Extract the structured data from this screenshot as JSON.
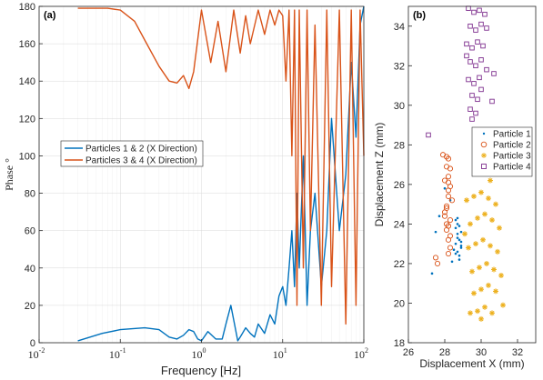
{
  "chart_data": [
    {
      "type": "line",
      "panel_label": "(a)",
      "xlabel": "Frequency [Hz]",
      "ylabel": "Phase °",
      "xscale": "log",
      "xlim": [
        0.01,
        100
      ],
      "ylim": [
        0,
        180
      ],
      "xticks": [
        0.01,
        0.1,
        1,
        10,
        100
      ],
      "xtick_labels": [
        {
          "base": "10",
          "exp": "-2"
        },
        {
          "base": "10",
          "exp": "-1"
        },
        {
          "base": "10",
          "exp": "0"
        },
        {
          "base": "10",
          "exp": "1"
        },
        {
          "base": "10",
          "exp": "2"
        }
      ],
      "yticks": [
        0,
        20,
        40,
        60,
        80,
        100,
        120,
        140,
        160,
        180
      ],
      "grid": true,
      "legend_position": "center-left",
      "series": [
        {
          "name": "Particles 1 & 2 (X Direction)",
          "color": "#0072BD",
          "x": [
            0.03,
            0.06,
            0.1,
            0.2,
            0.3,
            0.4,
            0.5,
            0.6,
            0.7,
            0.8,
            0.9,
            1.0,
            1.2,
            1.5,
            1.8,
            2.0,
            2.3,
            2.5,
            2.8,
            3.0,
            3.5,
            4.0,
            4.5,
            5.0,
            6.0,
            7.0,
            8.0,
            9.0,
            10,
            11,
            12,
            13,
            14,
            15,
            16,
            18,
            20,
            22,
            25,
            30,
            35,
            40,
            50,
            60,
            70,
            80,
            90,
            100
          ],
          "y": [
            1,
            5,
            7,
            8,
            7,
            3,
            2,
            4,
            7,
            6,
            2,
            1,
            6,
            2,
            2,
            10,
            20,
            12,
            1,
            3,
            8,
            5,
            3,
            10,
            5,
            15,
            10,
            25,
            30,
            20,
            40,
            60,
            30,
            80,
            40,
            100,
            20,
            60,
            80,
            30,
            60,
            120,
            60,
            90,
            150,
            110,
            170,
            180
          ]
        },
        {
          "name": "Particles 3 & 4 (X Direction)",
          "color": "#D95319",
          "x": [
            0.03,
            0.05,
            0.07,
            0.1,
            0.15,
            0.2,
            0.3,
            0.4,
            0.5,
            0.6,
            0.7,
            0.8,
            1.0,
            1.3,
            1.6,
            2.0,
            2.5,
            3.0,
            3.5,
            4.0,
            5.0,
            6.0,
            7.0,
            8.0,
            9.0,
            10,
            11,
            12,
            13,
            14,
            15,
            16,
            18,
            20,
            22,
            25,
            30,
            35,
            40,
            50,
            60,
            70,
            80,
            90,
            100
          ],
          "y": [
            179,
            179,
            179,
            178,
            172,
            162,
            148,
            140,
            139,
            143,
            136,
            145,
            178,
            150,
            172,
            145,
            178,
            155,
            175,
            160,
            178,
            165,
            178,
            170,
            178,
            175,
            140,
            178,
            100,
            178,
            20,
            178,
            40,
            178,
            60,
            170,
            20,
            178,
            30,
            178,
            10,
            178,
            20,
            178,
            100
          ]
        }
      ]
    },
    {
      "type": "scatter",
      "panel_label": "(b)",
      "xlabel": "Displacement X (mm)",
      "ylabel": "Displacement Z (mm)",
      "xlim": [
        26,
        33
      ],
      "ylim": [
        18,
        35
      ],
      "xticks": [
        26,
        28,
        30,
        32
      ],
      "yticks": [
        18,
        20,
        22,
        24,
        26,
        28,
        30,
        32,
        34
      ],
      "grid": false,
      "legend_position": "right",
      "series": [
        {
          "name": "Particle 1",
          "color": "#0072BD",
          "marker": "dot",
          "x": [
            28.6,
            28.7,
            28.8,
            28.9,
            28.7,
            28.6,
            28.5,
            28.8,
            28.9,
            28.7,
            28.6,
            28.8,
            28.9,
            28.7,
            28.8,
            28.6,
            28.7,
            28.9,
            27.5,
            27.7,
            28.4,
            27.3,
            28.0,
            28.3
          ],
          "y": [
            23.8,
            23.5,
            23.2,
            22.9,
            22.6,
            23.0,
            22.7,
            22.4,
            23.6,
            24.0,
            24.2,
            22.2,
            22.8,
            23.3,
            23.9,
            22.5,
            24.3,
            23.1,
            23.6,
            24.4,
            22.1,
            21.5,
            25.8,
            25.2
          ]
        },
        {
          "name": "Particle 2",
          "color": "#D95319",
          "marker": "circle",
          "x": [
            28.1,
            28.2,
            28.3,
            28.2,
            28.1,
            28.0,
            28.2,
            28.3,
            28.1,
            28.2,
            28.3,
            28.1,
            28.0,
            28.2,
            28.3,
            28.4,
            28.1,
            28.2,
            28.3,
            28.2,
            27.9,
            28.0,
            28.1,
            27.6,
            27.5,
            28.2
          ],
          "y": [
            26.9,
            26.4,
            25.9,
            25.4,
            24.9,
            24.4,
            23.9,
            23.4,
            24.8,
            25.7,
            24.2,
            23.7,
            24.6,
            26.1,
            26.8,
            25.2,
            24.0,
            23.2,
            22.8,
            27.3,
            27.5,
            26.2,
            27.4,
            22.0,
            22.3,
            22.5
          ]
        },
        {
          "name": "Particle 3",
          "color": "#EDB120",
          "marker": "asterisk",
          "x": [
            29.2,
            29.6,
            30.0,
            30.4,
            30.8,
            29.4,
            29.8,
            30.2,
            30.6,
            31.0,
            29.3,
            29.7,
            30.1,
            30.5,
            30.9,
            29.5,
            29.9,
            30.3,
            30.7,
            31.1,
            29.6,
            30.0,
            30.4,
            30.8,
            29.4,
            29.8,
            30.2,
            30.6,
            31.2,
            29.1,
            30.0,
            30.5
          ],
          "y": [
            25.2,
            25.4,
            25.6,
            25.3,
            25.0,
            24.0,
            24.3,
            24.5,
            24.2,
            23.8,
            22.8,
            23.0,
            23.2,
            22.9,
            22.6,
            21.6,
            21.8,
            22.0,
            21.7,
            21.4,
            20.5,
            20.7,
            20.9,
            20.6,
            19.5,
            19.6,
            19.8,
            19.5,
            19.9,
            23.5,
            19.2,
            26.2
          ]
        },
        {
          "name": "Particle 4",
          "color": "#7E2F8E",
          "marker": "square",
          "x": [
            29.3,
            29.6,
            29.9,
            30.2,
            29.4,
            29.7,
            30.0,
            30.3,
            29.2,
            29.5,
            29.8,
            30.1,
            29.4,
            29.7,
            30.0,
            29.3,
            29.6,
            29.9,
            29.5,
            29.8,
            29.4,
            29.7,
            29.5,
            30.0,
            30.3,
            29.2,
            30.6,
            30.7,
            27.1
          ],
          "y": [
            34.9,
            34.7,
            34.8,
            34.6,
            34.0,
            33.8,
            34.1,
            33.9,
            33.1,
            32.9,
            33.2,
            33.0,
            32.2,
            32.0,
            32.3,
            31.3,
            31.1,
            31.4,
            30.5,
            30.3,
            29.8,
            29.6,
            29.3,
            30.8,
            31.8,
            32.5,
            30.2,
            31.6,
            28.5
          ]
        }
      ]
    }
  ]
}
